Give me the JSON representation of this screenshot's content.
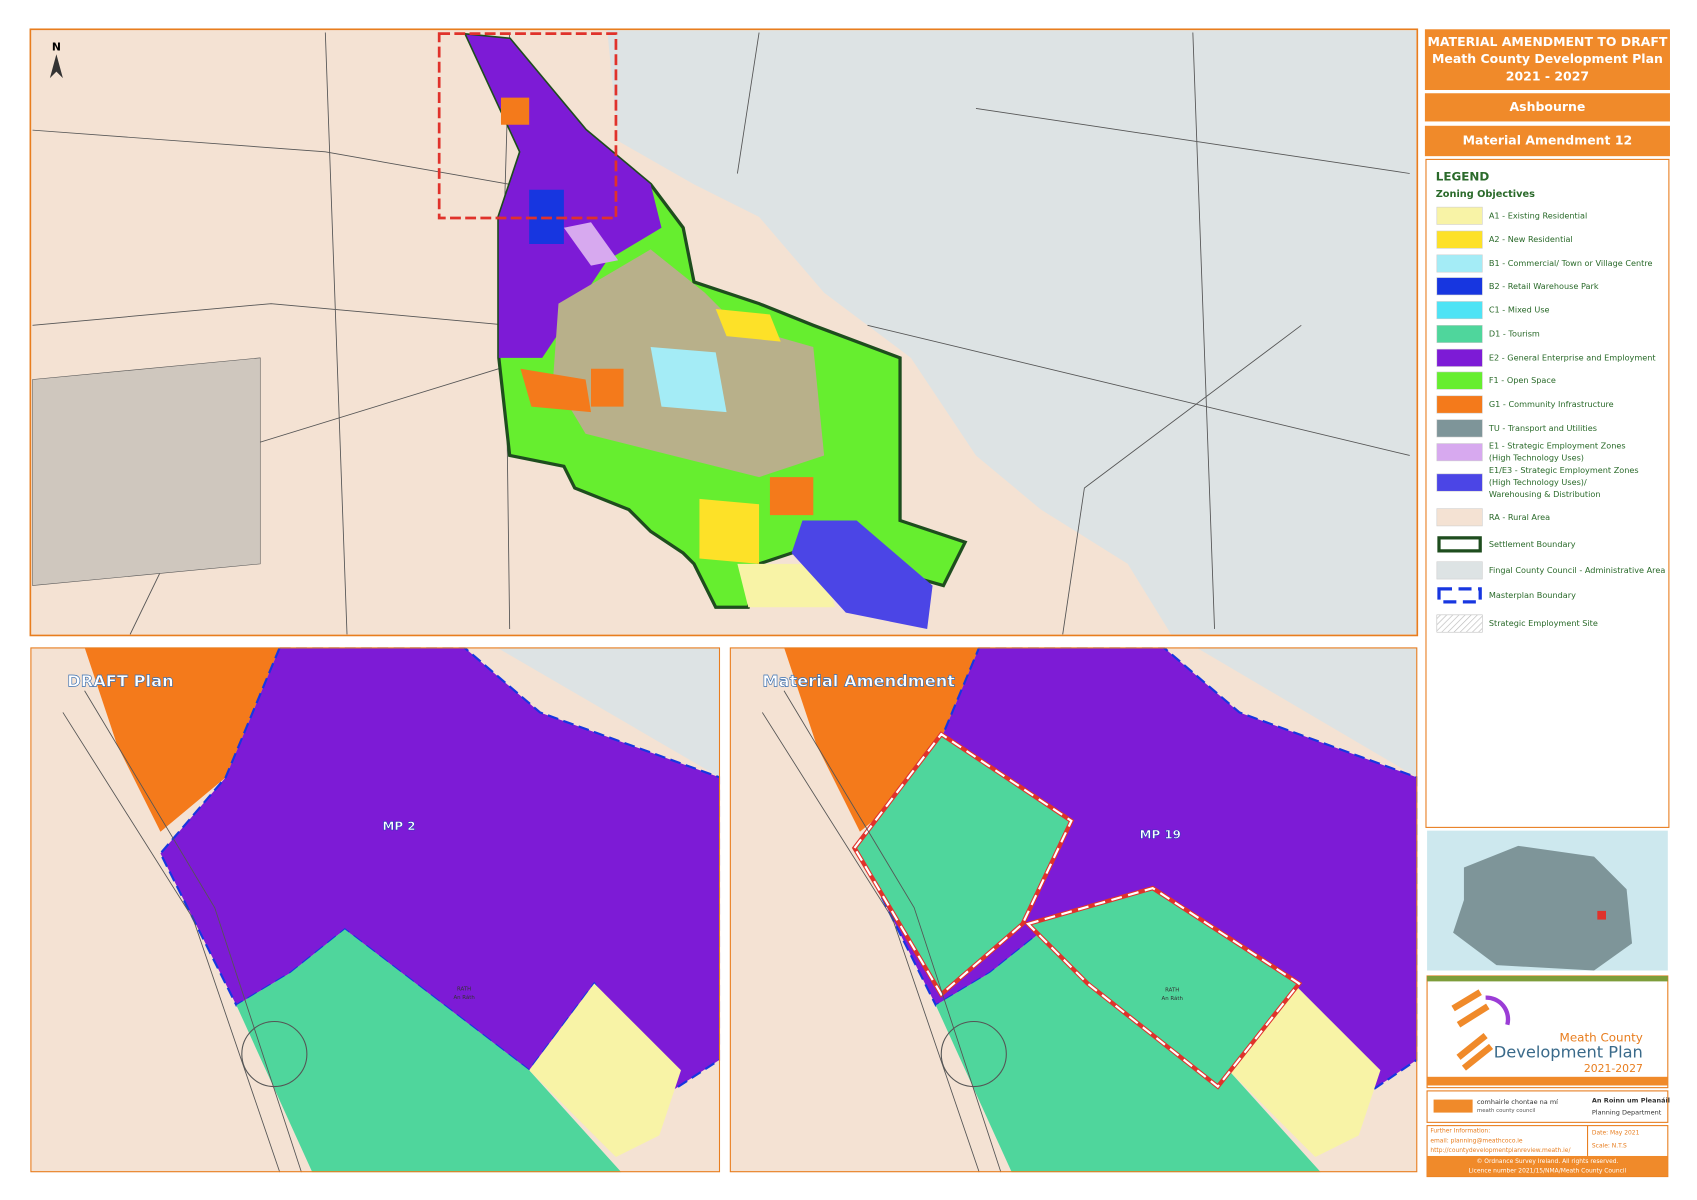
{
  "header": {
    "title_lines": [
      "MATERIAL AMENDMENT TO DRAFT",
      "Meath County Development Plan",
      "2021 - 2027"
    ],
    "town": "Ashbourne",
    "amendment": "Material Amendment 12"
  },
  "north": "N",
  "legend": {
    "title": "LEGEND",
    "subtitle": "Zoning Objectives",
    "items": [
      {
        "label": [
          "A1 - Existing Residential"
        ],
        "color": "#f8f3a6",
        "swatch": "fill"
      },
      {
        "label": [
          "A2 - New Residential"
        ],
        "color": "#fde128",
        "swatch": "fill"
      },
      {
        "label": [
          "B1 - Commercial/ Town or Village Centre"
        ],
        "color": "#a4ecf6",
        "swatch": "fill"
      },
      {
        "label": [
          "B2 - Retail Warehouse Park"
        ],
        "color": "#1736e0",
        "swatch": "fill"
      },
      {
        "label": [
          "C1 - Mixed Use"
        ],
        "color": "#4ee3f5",
        "swatch": "fill"
      },
      {
        "label": [
          "D1 - Tourism"
        ],
        "color": "#4fd69c",
        "swatch": "fill"
      },
      {
        "label": [
          "E2 - General Enterprise and Employment"
        ],
        "color": "#7d1bd6",
        "swatch": "fill"
      },
      {
        "label": [
          "F1 - Open Space"
        ],
        "color": "#66ee2f",
        "swatch": "fill"
      },
      {
        "label": [
          "G1 - Community Infrastructure"
        ],
        "color": "#f47a1b",
        "swatch": "fill"
      },
      {
        "label": [
          "TU - Transport and Utilities"
        ],
        "color": "#7e9599",
        "swatch": "fill"
      },
      {
        "label": [
          "E1 - Strategic Employment Zones",
          "(High Technology Uses)"
        ],
        "color": "#d7a9ef",
        "swatch": "fill"
      },
      {
        "label": [
          "E1/E3 - Strategic Employment Zones",
          "(High Technology Uses)/",
          "Warehousing & Distribution"
        ],
        "color": "#4b45e6",
        "swatch": "fill"
      },
      {
        "label": [
          "RA - Rural Area"
        ],
        "color": "#f4e2d3",
        "swatch": "fill"
      },
      {
        "label": [
          "Settlement Boundary"
        ],
        "color": "#1e4d1e",
        "swatch": "outline"
      },
      {
        "label": [
          "Fingal County Council - Administrative Area"
        ],
        "color": "#dde3e4",
        "swatch": "fill"
      },
      {
        "label": [
          "Masterplan Boundary"
        ],
        "color": "#1736e0",
        "swatch": "dashed"
      },
      {
        "label": [
          "Strategic Employment Site"
        ],
        "color": "#bbbbbb",
        "swatch": "hatch"
      }
    ]
  },
  "panels": {
    "draft": {
      "label": "DRAFT Plan",
      "mp": "MP 2",
      "place": [
        "RATH",
        "An Ráth"
      ]
    },
    "amendment": {
      "label": "Material Amendment",
      "mp": "MP 19",
      "place": [
        "RATH",
        "An Ráth"
      ]
    }
  },
  "logo": {
    "line1": "Meath County",
    "line2": "Development Plan",
    "line3": "2021-2027"
  },
  "council": {
    "irish": "comhairle chontae na mí",
    "english": "meath county council",
    "dept_irish": "An Roinn um Pleanáil",
    "dept": "Planning Department"
  },
  "footer": {
    "info": [
      "Further Information:",
      "email: planning@meathcoco.ie",
      "http://countydevelopmentplanreview.meath.ie/"
    ],
    "date": "Date: May 2021",
    "scale": "Scale: N.T.S",
    "copyright": [
      "© Ordnance Survey Ireland. All rights reserved.",
      "Licence number 2021/15/NMA/Meath County Council"
    ]
  }
}
